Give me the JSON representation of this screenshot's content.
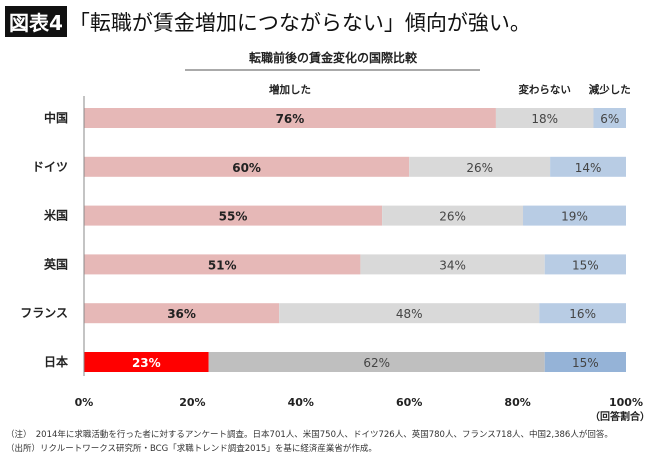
{
  "header": {
    "figure_label": "図表4",
    "title": "「転職が賃金増加につながらない」傾向が強い。"
  },
  "chart_data": {
    "type": "bar",
    "orientation": "horizontal-stacked-100",
    "title": "転職前後の賃金変化の国際比較",
    "categories": [
      "中国",
      "ドイツ",
      "米国",
      "英国",
      "フランス",
      "日本"
    ],
    "series": [
      {
        "name": "増加した",
        "values": [
          76,
          60,
          55,
          51,
          36,
          23
        ],
        "color": "#e6b8b7",
        "highlight_color": "#ff0000"
      },
      {
        "name": "変わらない",
        "values": [
          18,
          26,
          26,
          34,
          48,
          62
        ],
        "color": "#d9d9d9",
        "highlight_color": "#bfbfbf"
      },
      {
        "name": "減少した",
        "values": [
          6,
          14,
          19,
          15,
          16,
          15
        ],
        "color": "#b8cce4",
        "highlight_color": "#95b3d7"
      }
    ],
    "highlight_category": "日本",
    "x_ticks": [
      "0%",
      "20%",
      "40%",
      "60%",
      "80%",
      "100%"
    ],
    "xlabel": "（回答割合）",
    "xlim": [
      0,
      100
    ],
    "grid": false
  },
  "notes": {
    "note": "（注）　2014年に求職活動を行った者に対するアンケート調査。日本701人、米国750人、ドイツ726人、英国780人、フランス718人、中国2,386人が回答。",
    "source": "（出所）リクルートワークス研究所・BCG「求職トレンド調査2015」を基に経済産業省が作成。"
  }
}
